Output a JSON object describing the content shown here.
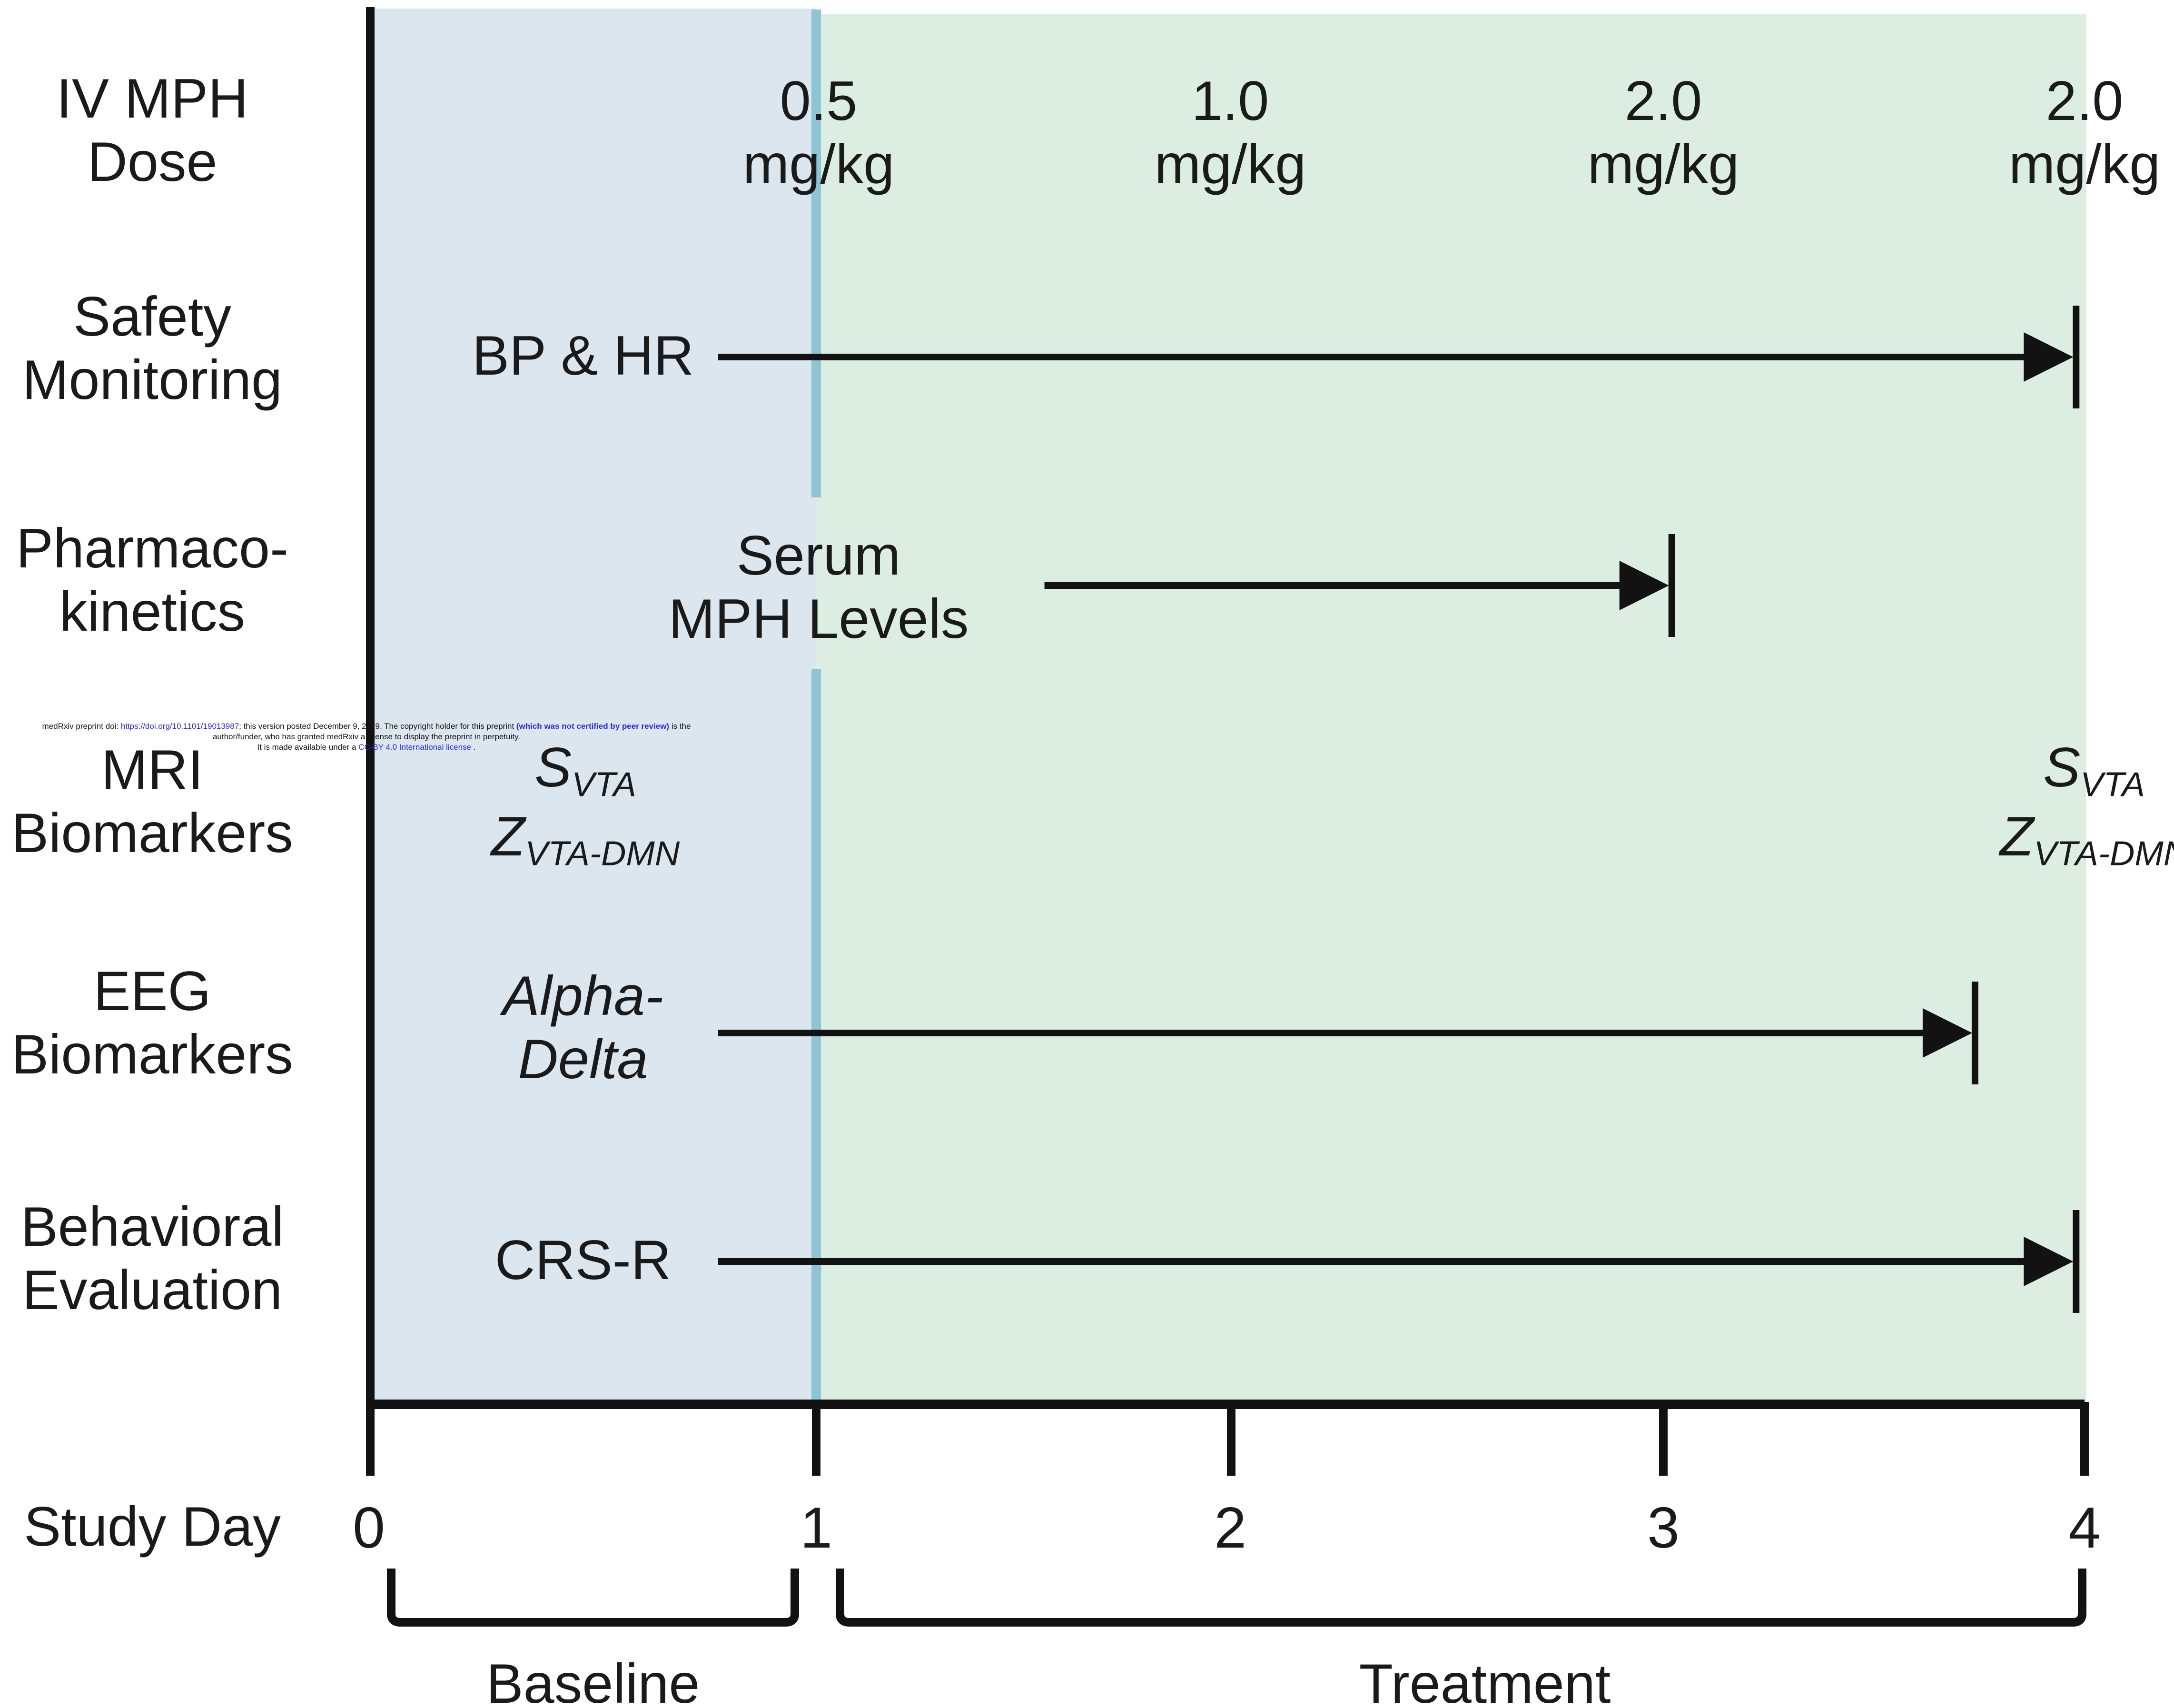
{
  "colors": {
    "baseline_region": "#dce6ef",
    "treatment_region": "#dceee1",
    "divider": "#8ec5d6",
    "ink": "#121212",
    "link": "#2b2bd8"
  },
  "row_labels": {
    "dose": [
      "IV MPH",
      "Dose"
    ],
    "safety": [
      "Safety",
      "Monitoring"
    ],
    "pk": [
      "Pharmaco-",
      "kinetics"
    ],
    "mri": [
      "MRI",
      "Biomarkers"
    ],
    "eeg": [
      "EEG",
      "Biomarkers"
    ],
    "behavior": [
      "Behavioral",
      "Evaluation"
    ],
    "study_day": "Study Day"
  },
  "doses": [
    {
      "value": "0.5",
      "unit": "mg/kg"
    },
    {
      "value": "1.0",
      "unit": "mg/kg"
    },
    {
      "value": "2.0",
      "unit": "mg/kg"
    },
    {
      "value": "2.0",
      "unit": "mg/kg"
    }
  ],
  "measures": {
    "safety": "BP & HR",
    "pk": [
      "Serum",
      "MPH Levels"
    ],
    "mri": {
      "s": "S",
      "s_sub": "VTA",
      "z": "Z",
      "z_sub": "VTA-DMN",
      "z_sub_end": "VTA-DMN"
    },
    "eeg": [
      "Alpha-",
      "Delta"
    ],
    "behavior": "CRS-R"
  },
  "arrows": [
    {
      "row": "safety",
      "start_day": 0.78,
      "end_day": 3.98
    },
    {
      "row": "pk",
      "start_day": 1.55,
      "end_day": 3.02
    },
    {
      "row": "eeg",
      "start_day": 0.78,
      "end_day": 3.74
    },
    {
      "row": "behavior",
      "start_day": 0.78,
      "end_day": 3.98
    }
  ],
  "axis": {
    "ticks": [
      "0",
      "1",
      "2",
      "3",
      "4"
    ],
    "tick_days": [
      0,
      1,
      2,
      3,
      4
    ]
  },
  "phases": {
    "baseline": "Baseline",
    "treatment": "Treatment"
  },
  "notice": {
    "text1": "medRxiv preprint doi: ",
    "doi": "https://doi.org/10.1101/19013987",
    "text2": "; this version posted December 9, 2019. The copyright holder for this preprint ",
    "bold1": "(which was not certified by peer review)",
    "text3": " is the author/funder, who has granted medRxiv a license to display the preprint in perpetuity.",
    "text4": "It is made available under a ",
    "license": "CC-BY 4.0 International license",
    "text5": " ."
  }
}
